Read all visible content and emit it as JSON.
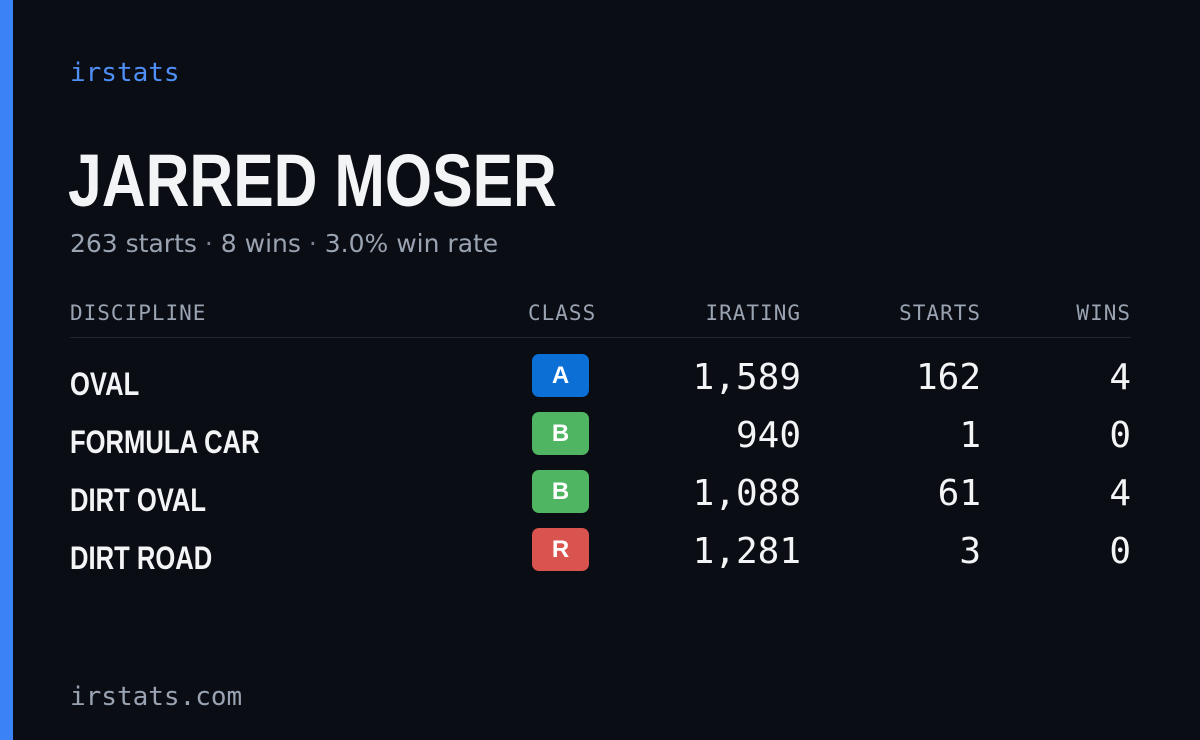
{
  "brand": "irstats",
  "player": {
    "name": "JARRED MOSER"
  },
  "summary": {
    "starts": "263 starts",
    "wins": "8 wins",
    "win_rate": "3.0% win rate",
    "separator": "·"
  },
  "table": {
    "headers": {
      "discipline": "DISCIPLINE",
      "class": "CLASS",
      "irating": "IRATING",
      "starts": "STARTS",
      "wins": "WINS"
    },
    "rows": [
      {
        "discipline": "OVAL",
        "class": "A",
        "class_color": "#0b6fd6",
        "irating": "1,589",
        "starts": "162",
        "wins": "4"
      },
      {
        "discipline": "FORMULA CAR",
        "class": "B",
        "class_color": "#4fb562",
        "irating": "940",
        "starts": "1",
        "wins": "0"
      },
      {
        "discipline": "DIRT OVAL",
        "class": "B",
        "class_color": "#4fb562",
        "irating": "1,088",
        "starts": "61",
        "wins": "4"
      },
      {
        "discipline": "DIRT ROAD",
        "class": "R",
        "class_color": "#d9534f",
        "irating": "1,281",
        "starts": "3",
        "wins": "0"
      }
    ]
  },
  "footer": {
    "site": "irstats.com"
  },
  "colors": {
    "background": "#0a0d14",
    "accent": "#3b82f6"
  }
}
